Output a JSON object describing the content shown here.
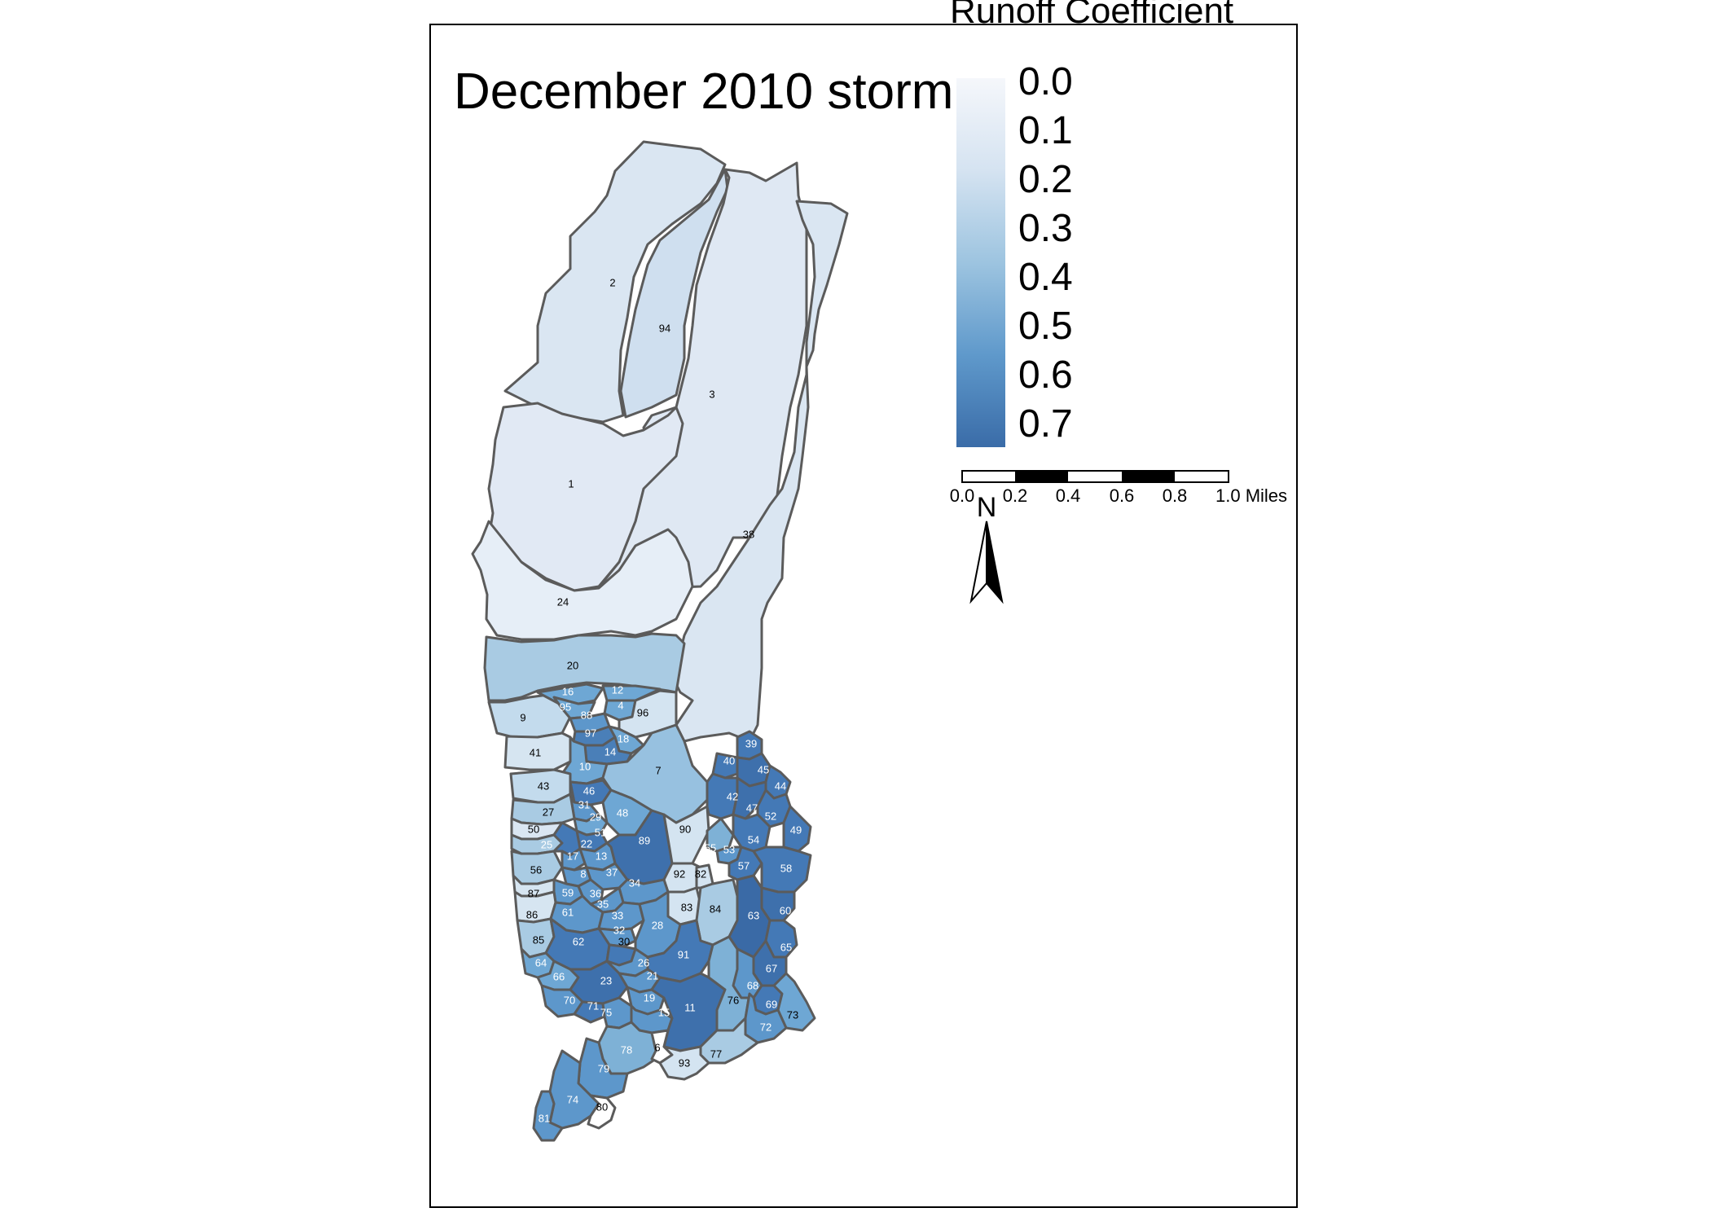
{
  "map": {
    "title": "December 2010 storm",
    "legend": {
      "title": "Runoff Coefficient",
      "ticks": [
        "0.0",
        "0.1",
        "0.2",
        "0.3",
        "0.4",
        "0.5",
        "0.6",
        "0.7"
      ],
      "color_low": "#f5f7fb",
      "color_high": "#3a6ca8"
    },
    "scale_bar": {
      "ticks": [
        "0.0",
        "0.2",
        "0.4",
        "0.6",
        "0.8",
        "1.0 Miles"
      ]
    },
    "north_arrow": {
      "label": "N"
    },
    "colors": {
      "very_light": "#e6eef7",
      "light": "#dae6f2",
      "mid_light": "#a9cbe3",
      "mid": "#7eb1d6",
      "strong": "#5d97cb",
      "deep": "#4479b6",
      "darkest": "#3a6aa6"
    },
    "subbasins": [
      {
        "id": "1"
      },
      {
        "id": "2"
      },
      {
        "id": "3"
      },
      {
        "id": "94"
      },
      {
        "id": "38"
      },
      {
        "id": "24"
      },
      {
        "id": "20"
      },
      {
        "id": "16"
      },
      {
        "id": "12"
      },
      {
        "id": "95"
      },
      {
        "id": "4"
      },
      {
        "id": "9"
      },
      {
        "id": "88"
      },
      {
        "id": "96"
      },
      {
        "id": "97"
      },
      {
        "id": "18"
      },
      {
        "id": "41"
      },
      {
        "id": "14"
      },
      {
        "id": "10"
      },
      {
        "id": "7"
      },
      {
        "id": "39"
      },
      {
        "id": "40"
      },
      {
        "id": "45"
      },
      {
        "id": "43"
      },
      {
        "id": "46"
      },
      {
        "id": "44"
      },
      {
        "id": "31"
      },
      {
        "id": "42"
      },
      {
        "id": "27"
      },
      {
        "id": "29"
      },
      {
        "id": "48"
      },
      {
        "id": "47"
      },
      {
        "id": "52"
      },
      {
        "id": "50"
      },
      {
        "id": "51"
      },
      {
        "id": "90"
      },
      {
        "id": "49"
      },
      {
        "id": "25"
      },
      {
        "id": "22"
      },
      {
        "id": "89"
      },
      {
        "id": "54"
      },
      {
        "id": "17"
      },
      {
        "id": "13"
      },
      {
        "id": "55"
      },
      {
        "id": "53"
      },
      {
        "id": "56"
      },
      {
        "id": "8"
      },
      {
        "id": "37"
      },
      {
        "id": "57"
      },
      {
        "id": "58"
      },
      {
        "id": "92"
      },
      {
        "id": "82"
      },
      {
        "id": "34"
      },
      {
        "id": "87"
      },
      {
        "id": "59"
      },
      {
        "id": "36"
      },
      {
        "id": "35"
      },
      {
        "id": "83"
      },
      {
        "id": "84"
      },
      {
        "id": "60"
      },
      {
        "id": "86"
      },
      {
        "id": "61"
      },
      {
        "id": "33"
      },
      {
        "id": "63"
      },
      {
        "id": "32"
      },
      {
        "id": "28"
      },
      {
        "id": "85"
      },
      {
        "id": "62"
      },
      {
        "id": "30"
      },
      {
        "id": "65"
      },
      {
        "id": "91"
      },
      {
        "id": "64"
      },
      {
        "id": "26"
      },
      {
        "id": "67"
      },
      {
        "id": "66"
      },
      {
        "id": "21"
      },
      {
        "id": "23"
      },
      {
        "id": "68"
      },
      {
        "id": "70"
      },
      {
        "id": "19"
      },
      {
        "id": "76"
      },
      {
        "id": "71"
      },
      {
        "id": "11"
      },
      {
        "id": "69"
      },
      {
        "id": "75"
      },
      {
        "id": "15"
      },
      {
        "id": "73"
      },
      {
        "id": "72"
      },
      {
        "id": "78"
      },
      {
        "id": "6"
      },
      {
        "id": "77"
      },
      {
        "id": "93"
      },
      {
        "id": "79"
      },
      {
        "id": "74"
      },
      {
        "id": "80"
      },
      {
        "id": "81"
      }
    ]
  }
}
